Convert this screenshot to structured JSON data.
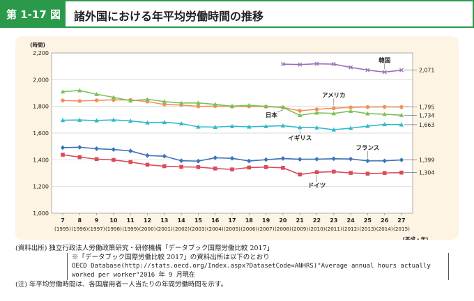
{
  "header": {
    "fig_number": "第 1-17 図",
    "title": "諸外国における年平均労働時間の推移"
  },
  "chart_data": {
    "type": "line",
    "yunit_label": "(時間)",
    "xunit_label": "(平成・年)",
    "ylim": [
      1000,
      2200
    ],
    "yticks": [
      1000,
      1200,
      1400,
      1600,
      1800,
      2000,
      2200
    ],
    "ytick_labels": [
      "1,000",
      "1,200",
      "1,400",
      "1,600",
      "1,800",
      "2,000",
      "2,200"
    ],
    "categories": [
      "7",
      "8",
      "9",
      "10",
      "11",
      "12",
      "13",
      "14",
      "15",
      "16",
      "17",
      "18",
      "19",
      "20",
      "21",
      "22",
      "23",
      "24",
      "25",
      "26",
      "27"
    ],
    "category_sublabels": [
      "(1995)",
      "(1996)",
      "(1997)",
      "(1998)",
      "(1999)",
      "(2000)",
      "(2001)",
      "(2002)",
      "(2003)",
      "(2004)",
      "(2005)",
      "(2006)",
      "(2007)",
      "(2008)",
      "(2009)",
      "(2010)",
      "(2011)",
      "(2012)",
      "(2013)",
      "(2014)",
      "(2015)"
    ],
    "grid": "horizontal",
    "series": [
      {
        "name": "韓国",
        "color": "#9b6fb8",
        "marker": "x",
        "values": [
          null,
          null,
          null,
          null,
          null,
          null,
          null,
          null,
          null,
          null,
          null,
          null,
          null,
          2116,
          2113,
          2119,
          2116,
          2092,
          2072,
          2057,
          2071
        ],
        "end_label": "2,071"
      },
      {
        "name": "アメリカ",
        "color": "#f0925a",
        "marker": "circle",
        "values": [
          1844,
          1840,
          1845,
          1849,
          1848,
          1836,
          1814,
          1810,
          1800,
          1802,
          1799,
          1800,
          1798,
          1792,
          1767,
          1778,
          1786,
          1792,
          1795,
          1796,
          1795
        ],
        "end_label": "1,795"
      },
      {
        "name": "日本",
        "color": "#7cc05a",
        "marker": "triangle",
        "values": [
          1910,
          1919,
          1891,
          1868,
          1842,
          1853,
          1836,
          1825,
          1826,
          1815,
          1801,
          1808,
          1800,
          1792,
          1733,
          1752,
          1747,
          1765,
          1746,
          1741,
          1734
        ],
        "end_label": "1,734"
      },
      {
        "name": "イギリス",
        "color": "#33b9c9",
        "marker": "triangle",
        "values": [
          1696,
          1698,
          1694,
          1699,
          1691,
          1678,
          1681,
          1671,
          1647,
          1645,
          1651,
          1647,
          1651,
          1655,
          1642,
          1641,
          1625,
          1637,
          1652,
          1665,
          1663
        ],
        "end_label": "1,663"
      },
      {
        "name": "フランス",
        "color": "#3d74b8",
        "marker": "diamond",
        "values": [
          1491,
          1494,
          1483,
          1477,
          1466,
          1432,
          1427,
          1393,
          1390,
          1415,
          1411,
          1391,
          1401,
          1410,
          1404,
          1405,
          1408,
          1406,
          1392,
          1392,
          1399
        ],
        "end_label": "1,399"
      },
      {
        "name": "ドイツ",
        "color": "#d94b58",
        "marker": "square",
        "values": [
          1438,
          1420,
          1405,
          1399,
          1383,
          1363,
          1352,
          1347,
          1345,
          1335,
          1328,
          1342,
          1345,
          1340,
          1290,
          1307,
          1311,
          1302,
          1296,
          1301,
          1304
        ],
        "end_label": "1,304"
      }
    ]
  },
  "notes": {
    "source_line": "(資料出所) 独立行政法人労働政策研究・研修機構「データブック国際労働比較 2017」",
    "source_sub1": "※「データブック国際労働比較 2017」の資料出所は以下のとおり",
    "source_sub2": "OECD Database(http://stats.oecd.org/Index.aspx?DatasetCode=ANHRS)\"Average annual hours actually worked per worker\"2016 年 9 月現在",
    "note_line": "(注) 年平均労働時間は、各国雇用者一人当たりの年間労働時間を示す。"
  }
}
